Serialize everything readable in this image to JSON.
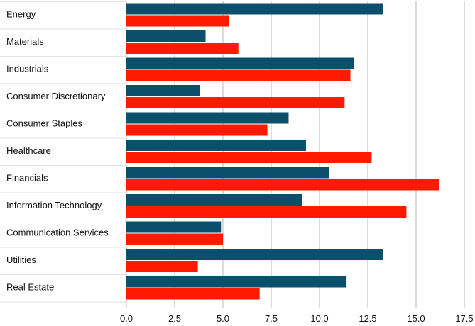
{
  "chart_data": {
    "type": "bar",
    "orientation": "horizontal",
    "categories": [
      "Energy",
      "Materials",
      "Industrials",
      "Consumer Discretionary",
      "Consumer Staples",
      "Healthcare",
      "Financials",
      "Information Technology",
      "Communication Services",
      "Utilities",
      "Real Estate"
    ],
    "series": [
      {
        "color": "#0b4f6c",
        "values": [
          13.3,
          4.1,
          11.8,
          3.8,
          8.4,
          9.3,
          10.5,
          9.1,
          4.9,
          13.3,
          11.4
        ]
      },
      {
        "color": "#ff1a00",
        "values": [
          5.3,
          5.8,
          11.6,
          11.3,
          7.3,
          12.7,
          16.2,
          14.5,
          5.0,
          3.7,
          6.9
        ]
      }
    ],
    "xlim": [
      0,
      17.5
    ],
    "xticks": [
      "0.0",
      "2.5",
      "5.0",
      "7.5",
      "10.0",
      "12.5",
      "15.0",
      "17.5"
    ],
    "grid": true,
    "title": "",
    "xlabel": "",
    "ylabel": ""
  }
}
